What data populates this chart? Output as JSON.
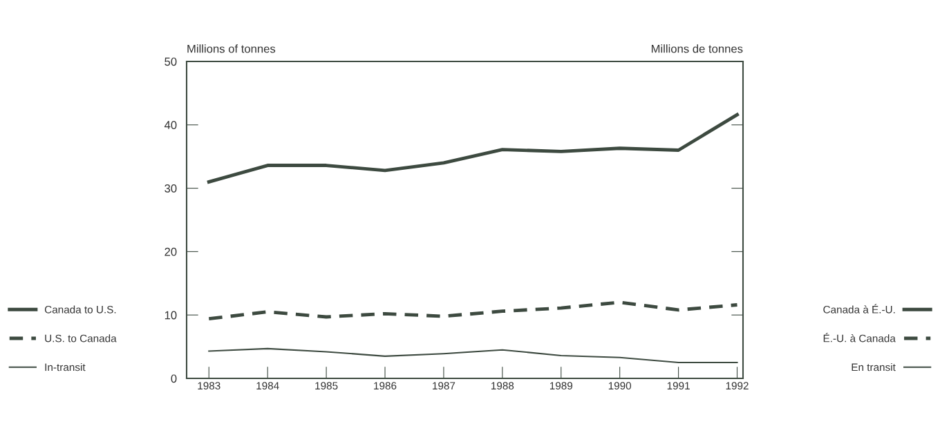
{
  "chart_data": {
    "type": "line",
    "ylabel": "Millions of tonnes",
    "y2label": "Millions de tonnes",
    "categories": [
      "1983",
      "1984",
      "1985",
      "1986",
      "1987",
      "1988",
      "1989",
      "1990",
      "1991",
      "1992"
    ],
    "series": [
      {
        "name": "Canada to U.S.",
        "color": "#3d4a40",
        "line_style": "solid",
        "values": [
          31,
          33.6,
          33.6,
          32.8,
          34,
          36.1,
          35.8,
          36.3,
          36,
          41.6
        ]
      },
      {
        "name": "U.S. to Canada",
        "color": "#3d4a40",
        "line_style": "dashed",
        "values": [
          9.4,
          10.5,
          9.7,
          10.2,
          9.8,
          10.6,
          11.1,
          12,
          10.8,
          11.6
        ]
      },
      {
        "name": "In-transit",
        "color": "#3d4a40",
        "line_style": "solid",
        "values": [
          4.3,
          4.7,
          4.2,
          3.5,
          3.9,
          4.5,
          3.6,
          3.3,
          2.5,
          2.5
        ]
      }
    ],
    "annotations": [
      "Canada à É.-U.",
      "É.-U. à Canada",
      "En transit"
    ],
    "ylim": [
      0,
      50
    ],
    "yticks": [
      0,
      10,
      20,
      30,
      40,
      50
    ],
    "grid": false,
    "legend": "left",
    "marker": "none"
  }
}
